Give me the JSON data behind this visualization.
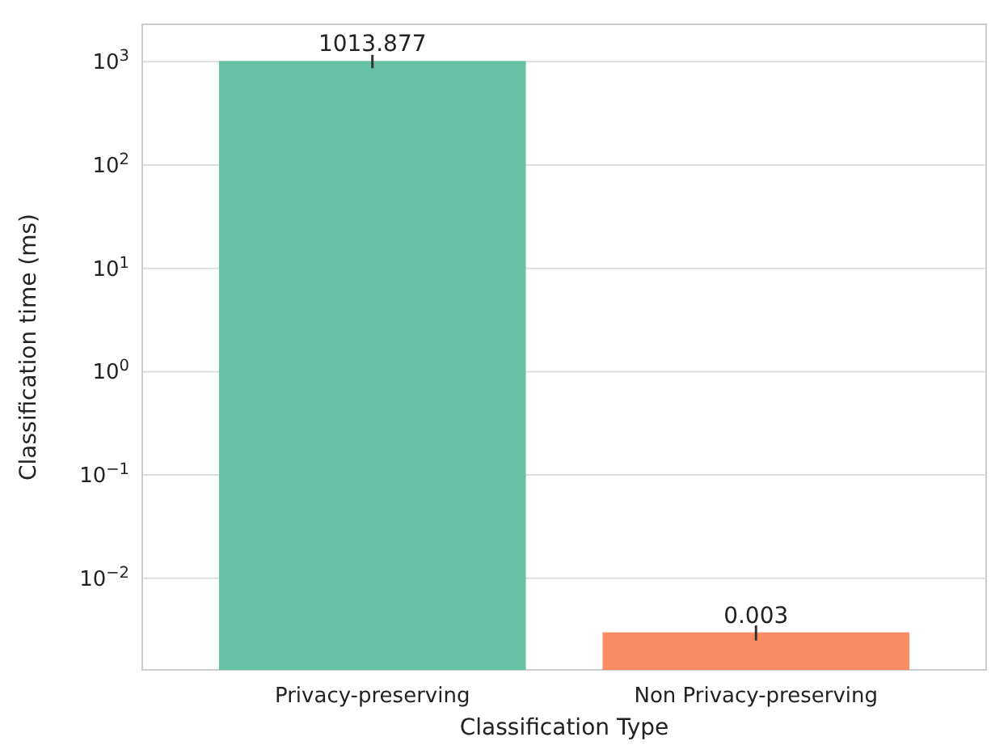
{
  "chart_data": {
    "type": "bar",
    "xlabel": "Classification Type",
    "ylabel": "Classification time (ms)",
    "categories": [
      "Privacy-preserving",
      "Non Privacy-preserving"
    ],
    "values": [
      1013.877,
      0.003
    ],
    "colors": [
      "#66c2a5",
      "#fc8d62"
    ],
    "errors": [
      150,
      0.0005
    ],
    "data_labels": true,
    "log": "y",
    "grid": "y",
    "ylim": [
      0.0013,
      2300
    ],
    "yticks": [
      {
        "value": 0.01,
        "label": "10$^{−2}$"
      },
      {
        "value": 0.1,
        "label": "10$^{−1}$"
      },
      {
        "value": 1,
        "label": "10$^{0}$"
      },
      {
        "value": 10,
        "label": "10$^{1}$"
      },
      {
        "value": 100,
        "label": "10$^{2}$"
      },
      {
        "value": 1000,
        "label": "10$^{3}$"
      }
    ]
  }
}
